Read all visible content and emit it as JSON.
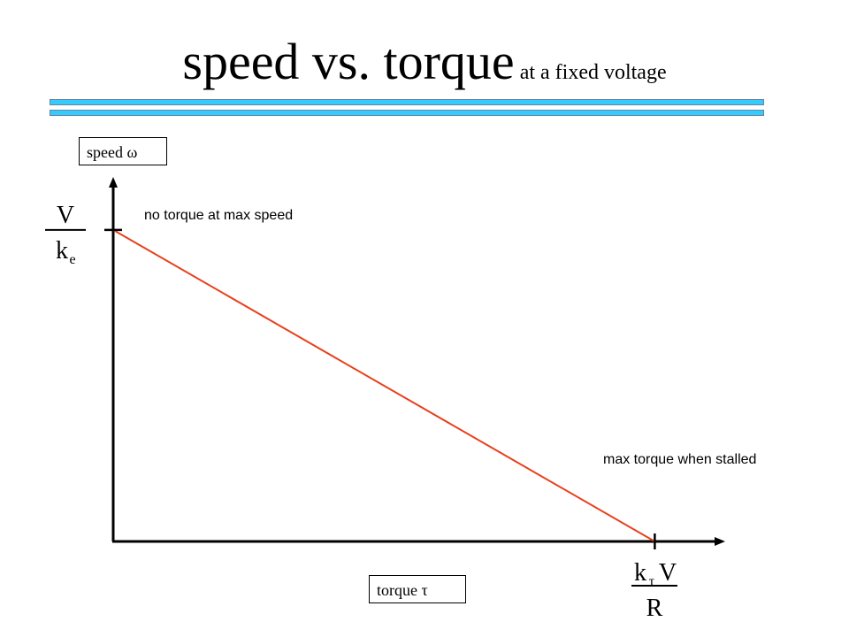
{
  "header": {
    "title": "speed vs. torque",
    "subtitle": "at a fixed voltage"
  },
  "chart_data": {
    "type": "line",
    "title": "speed vs. torque",
    "subtitle": "at a fixed voltage",
    "xlabel": "torque τ",
    "ylabel": "speed ω",
    "x_tick": {
      "numerator_main": "k",
      "numerator_sub": "τ",
      "numerator_tail": "V",
      "denominator": "R"
    },
    "y_tick": {
      "numerator": "V",
      "denominator_main": "k",
      "denominator_sub": "e"
    },
    "series": [
      {
        "x": [
          0,
          1
        ],
        "y": [
          1,
          0
        ],
        "color": "#e8401c"
      }
    ],
    "xlim": [
      0,
      1.13
    ],
    "ylim": [
      0,
      1.17
    ],
    "annotations": [
      "no torque at max speed",
      "max torque when stalled"
    ],
    "grid": false,
    "legend": "none"
  },
  "colors": {
    "rule": "#33ccff",
    "line": "#e8401c",
    "axis": "#000000"
  }
}
